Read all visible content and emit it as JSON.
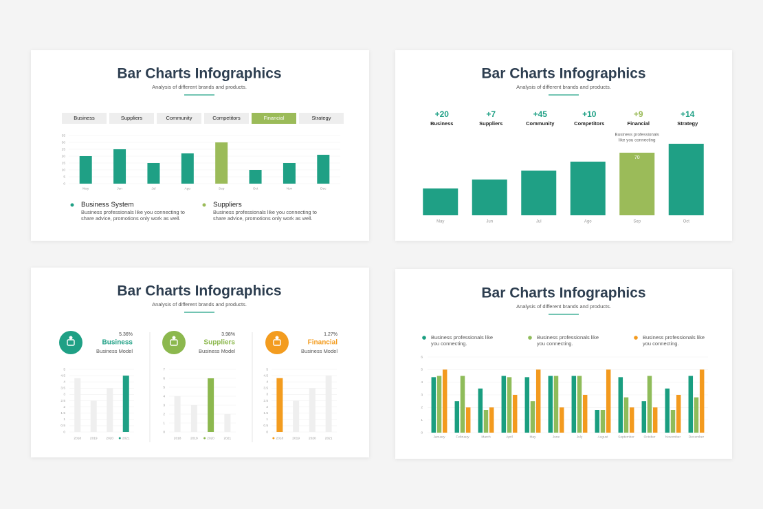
{
  "chart_data": [
    {
      "type": "bar",
      "title": "Bar Charts Infographics",
      "subtitle": "Analysis of different brands and products.",
      "tabs": [
        "Business",
        "Suppliers",
        "Community",
        "Competitors",
        "Financial",
        "Strategy"
      ],
      "active_tab": "Financial",
      "categories": [
        "May",
        "Jun",
        "Jul",
        "Ago",
        "Sep",
        "Oct",
        "Nov",
        "Dec"
      ],
      "values": [
        20,
        25,
        15,
        22,
        30,
        10,
        15,
        21
      ],
      "highlight": "Sep",
      "color": "#9bbb59",
      "base_color": "#1fa085",
      "ylim": [
        0,
        35
      ],
      "yticks": [
        0,
        5,
        10,
        15,
        20,
        25,
        30,
        35
      ],
      "grid": true,
      "legend": [
        {
          "name": "Business System",
          "color": "#1fa085",
          "description": [
            "Business professionals like you connecting to",
            "share advice, promotions only work as well."
          ]
        },
        {
          "name": "Suppliers",
          "color": "#9bbb59",
          "description": [
            "Business professionals like you connecting to",
            "share advice, promotions only work as well."
          ]
        }
      ]
    },
    {
      "type": "bar",
      "title": "Bar Charts Infographics",
      "subtitle": "Analysis of different brands and products.",
      "stats": [
        {
          "value": "+20",
          "name": "Business"
        },
        {
          "value": "+7",
          "name": "Suppliers"
        },
        {
          "value": "+45",
          "name": "Community"
        },
        {
          "value": "+10",
          "name": "Competitors"
        },
        {
          "value": "+9",
          "name": "Financial"
        },
        {
          "value": "+14",
          "name": "Strategy"
        }
      ],
      "categories": [
        "May",
        "Jun",
        "Jul",
        "Ago",
        "Sep",
        "Oct"
      ],
      "values": [
        30,
        40,
        50,
        60,
        70,
        80
      ],
      "show_value": [
        false,
        false,
        false,
        false,
        true,
        false
      ],
      "annotation": [
        "Business professionals",
        "like you connecting"
      ],
      "highlight": "Sep",
      "color": "#9bbb59",
      "base_color": "#1fa085",
      "ylim": [
        0,
        80
      ]
    },
    {
      "type": "bar",
      "title": "Bar Charts Infographics",
      "subtitle": "Analysis of different brands and products.",
      "stat": "5.36%",
      "name": "Business",
      "caption": "Business Model",
      "categories": [
        "2018",
        "2019",
        "2020",
        "2021"
      ],
      "values": [
        4.3,
        2.5,
        3.5,
        4.5
      ],
      "highlight": "2021",
      "color": "#1fa085",
      "base_color": "#efefef",
      "ylim": [
        0,
        5
      ],
      "yticks": [
        0,
        0.5,
        1,
        1.5,
        2,
        2.5,
        3,
        3.5,
        4,
        4.5,
        5
      ],
      "grid": true
    },
    {
      "type": "bar",
      "stat": "3.98%",
      "name": "Suppliers",
      "caption": "Business Model",
      "categories": [
        "2018",
        "2019",
        "2020",
        "2021"
      ],
      "values": [
        4,
        3,
        6,
        2
      ],
      "highlight": "2020",
      "color": "#8cb84e",
      "base_color": "#efefef",
      "ylim": [
        0,
        7
      ],
      "yticks": [
        0,
        1,
        2,
        3,
        4,
        5,
        6,
        7
      ],
      "grid": true
    },
    {
      "type": "bar",
      "stat": "1.27%",
      "name": "Financial",
      "caption": "Business Model",
      "categories": [
        "2018",
        "2019",
        "2020",
        "2021"
      ],
      "values": [
        4.3,
        2.5,
        3.5,
        4.5
      ],
      "highlight": "2018",
      "color": "#f39c1f",
      "base_color": "#efefef",
      "ylim": [
        0,
        5
      ],
      "yticks": [
        0,
        0.5,
        1,
        1.5,
        2,
        2.5,
        3,
        3.5,
        4,
        4.5,
        5
      ],
      "grid": true
    },
    {
      "type": "grouped_bar",
      "title": "Bar Charts Infographics",
      "subtitle": "Analysis of different brands and products.",
      "categories": [
        "January",
        "February",
        "March",
        "April",
        "May",
        "June",
        "July",
        "August",
        "September",
        "October",
        "November",
        "December"
      ],
      "series": [
        {
          "name": "Business professionals like you connecting.",
          "color": "#1a9e80",
          "values": [
            4.4,
            2.5,
            3.5,
            4.5,
            4.4,
            4.5,
            4.5,
            1.8,
            4.4,
            2.5,
            3.5,
            4.5
          ]
        },
        {
          "name": "Business professionals like you connecting.",
          "color": "#8fbc5a",
          "values": [
            4.5,
            4.5,
            1.8,
            4.4,
            2.5,
            4.5,
            4.5,
            1.8,
            2.8,
            4.5,
            1.8,
            2.8
          ]
        },
        {
          "name": "Business professionals like you connecting.",
          "color": "#f39a1e",
          "values": [
            5,
            2,
            2,
            3,
            5,
            2,
            3,
            5,
            2,
            2,
            3,
            5
          ]
        }
      ],
      "ylim": [
        0,
        6
      ],
      "yticks": [
        0,
        1,
        2,
        3,
        4,
        5,
        6
      ],
      "grid": true
    }
  ]
}
